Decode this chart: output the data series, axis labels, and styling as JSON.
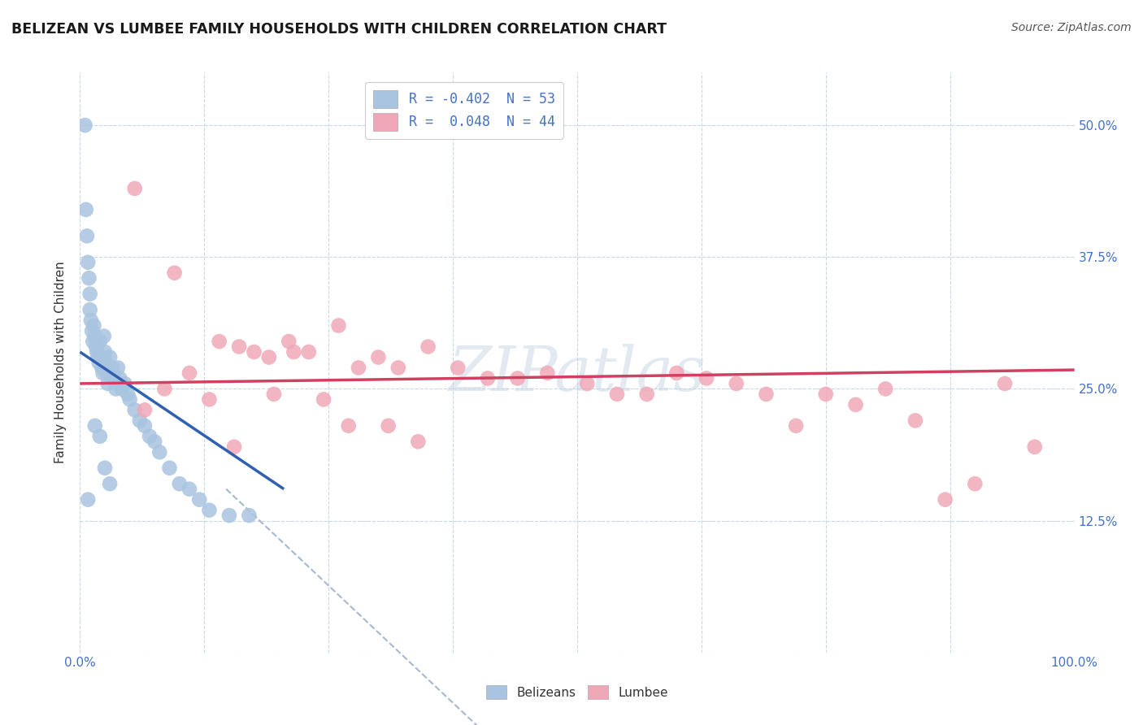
{
  "title": "BELIZEAN VS LUMBEE FAMILY HOUSEHOLDS WITH CHILDREN CORRELATION CHART",
  "source": "Source: ZipAtlas.com",
  "ylabel": "Family Households with Children",
  "xlim": [
    0.0,
    1.0
  ],
  "ylim": [
    0.0,
    0.55
  ],
  "grid_color": "#c8d8e8",
  "watermark": "ZIPatlas",
  "watermark_color": "#c0d0e0",
  "belizean_color": "#a8c4e0",
  "lumbee_color": "#f0a8b8",
  "belizean_line_color": "#3060b0",
  "lumbee_line_color": "#d04060",
  "dashed_line_color": "#a8b8cc",
  "legend_line1": "R = -0.402  N = 53",
  "legend_line2": "R =  0.048  N = 44",
  "legend_label_belizean": "Belizeans",
  "legend_label_lumbee": "Lumbee",
  "belizean_x": [
    0.005,
    0.006,
    0.007,
    0.008,
    0.009,
    0.01,
    0.01,
    0.011,
    0.012,
    0.013,
    0.014,
    0.015,
    0.016,
    0.017,
    0.018,
    0.019,
    0.02,
    0.021,
    0.022,
    0.023,
    0.024,
    0.025,
    0.026,
    0.027,
    0.028,
    0.03,
    0.032,
    0.034,
    0.036,
    0.038,
    0.04,
    0.042,
    0.045,
    0.048,
    0.05,
    0.055,
    0.06,
    0.065,
    0.07,
    0.075,
    0.08,
    0.09,
    0.1,
    0.11,
    0.12,
    0.13,
    0.15,
    0.17,
    0.015,
    0.02,
    0.025,
    0.03,
    0.008
  ],
  "belizean_y": [
    0.5,
    0.42,
    0.395,
    0.37,
    0.355,
    0.34,
    0.325,
    0.315,
    0.305,
    0.295,
    0.31,
    0.3,
    0.29,
    0.285,
    0.28,
    0.275,
    0.295,
    0.28,
    0.27,
    0.265,
    0.3,
    0.285,
    0.275,
    0.265,
    0.255,
    0.28,
    0.27,
    0.26,
    0.25,
    0.27,
    0.26,
    0.25,
    0.255,
    0.245,
    0.24,
    0.23,
    0.22,
    0.215,
    0.205,
    0.2,
    0.19,
    0.175,
    0.16,
    0.155,
    0.145,
    0.135,
    0.13,
    0.13,
    0.215,
    0.205,
    0.175,
    0.16,
    0.145
  ],
  "lumbee_x": [
    0.055,
    0.095,
    0.14,
    0.16,
    0.175,
    0.19,
    0.21,
    0.23,
    0.26,
    0.28,
    0.3,
    0.32,
    0.35,
    0.38,
    0.41,
    0.44,
    0.47,
    0.51,
    0.54,
    0.57,
    0.6,
    0.63,
    0.66,
    0.69,
    0.72,
    0.75,
    0.78,
    0.81,
    0.84,
    0.87,
    0.9,
    0.93,
    0.96,
    0.065,
    0.085,
    0.11,
    0.13,
    0.155,
    0.195,
    0.215,
    0.245,
    0.27,
    0.31,
    0.34
  ],
  "lumbee_y": [
    0.44,
    0.36,
    0.295,
    0.29,
    0.285,
    0.28,
    0.295,
    0.285,
    0.31,
    0.27,
    0.28,
    0.27,
    0.29,
    0.27,
    0.26,
    0.26,
    0.265,
    0.255,
    0.245,
    0.245,
    0.265,
    0.26,
    0.255,
    0.245,
    0.215,
    0.245,
    0.235,
    0.25,
    0.22,
    0.145,
    0.16,
    0.255,
    0.195,
    0.23,
    0.25,
    0.265,
    0.24,
    0.195,
    0.245,
    0.285,
    0.24,
    0.215,
    0.215,
    0.2
  ],
  "belizean_line_x": [
    0.0,
    0.205
  ],
  "belizean_line_y": [
    0.285,
    0.155
  ],
  "lumbee_line_x": [
    0.0,
    1.0
  ],
  "lumbee_line_y": [
    0.255,
    0.268
  ],
  "dashed_line_x": [
    0.147,
    0.49
  ],
  "dashed_line_y": [
    0.155,
    -0.15
  ]
}
